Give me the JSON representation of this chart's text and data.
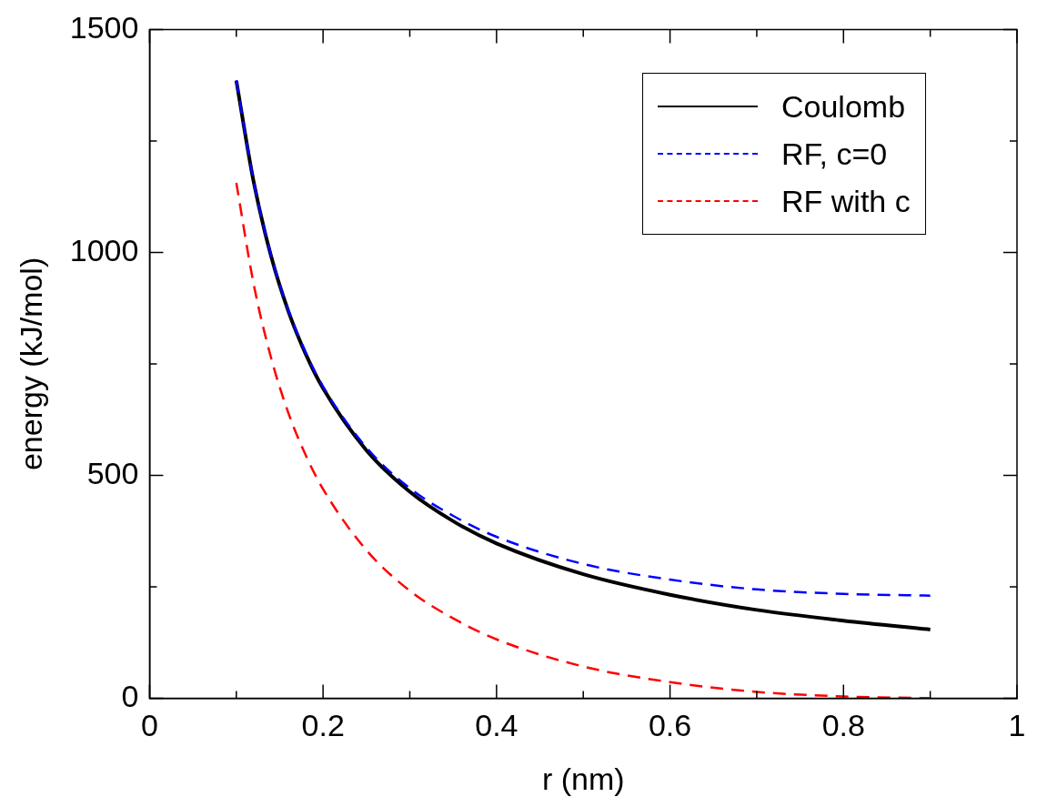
{
  "chart_data": {
    "type": "line",
    "xlabel": "r (nm)",
    "ylabel": "energy (kJ/mol)",
    "x": [
      0.1,
      0.12,
      0.14,
      0.16,
      0.18,
      0.2,
      0.25,
      0.3,
      0.35,
      0.4,
      0.5,
      0.6,
      0.7,
      0.8,
      0.9
    ],
    "series": [
      {
        "name": "Coulomb",
        "color": "#000000",
        "line_style": "solid",
        "values": [
          1385,
          1158,
          992,
          868,
          772,
          695,
          556,
          463,
          397,
          347,
          278,
          232,
          198,
          174,
          154
        ]
      },
      {
        "name": "RF, c=0",
        "color": "#0000ff",
        "line_style": "dashed",
        "values": [
          1386,
          1159,
          994,
          870,
          775,
          699,
          562,
          471,
          409,
          362,
          301,
          266,
          244,
          234,
          230
        ]
      },
      {
        "name": "RF with c",
        "color": "#ff0000",
        "line_style": "dashed",
        "values": [
          1156,
          929,
          764,
          640,
          545,
          469,
          332,
          241,
          179,
          132,
          71,
          36,
          14,
          4,
          0
        ]
      }
    ],
    "xlim": [
      0,
      1
    ],
    "xticks": [
      0,
      {
        "value": 0.1,
        "label": null
      },
      0.2,
      {
        "value": 0.3,
        "label": null
      },
      0.4,
      {
        "value": 0.5,
        "label": null
      },
      0.6,
      {
        "value": 0.7,
        "label": null
      },
      0.8,
      {
        "value": 0.9,
        "label": null
      },
      1
    ],
    "ylim": [
      0,
      1500
    ],
    "yticks": [
      0,
      {
        "value": 250,
        "label": null
      },
      500,
      {
        "value": 750,
        "label": null
      },
      1000,
      {
        "value": 1250,
        "label": null
      },
      1500
    ],
    "grid": false,
    "legend": "top right",
    "marker": "none"
  }
}
